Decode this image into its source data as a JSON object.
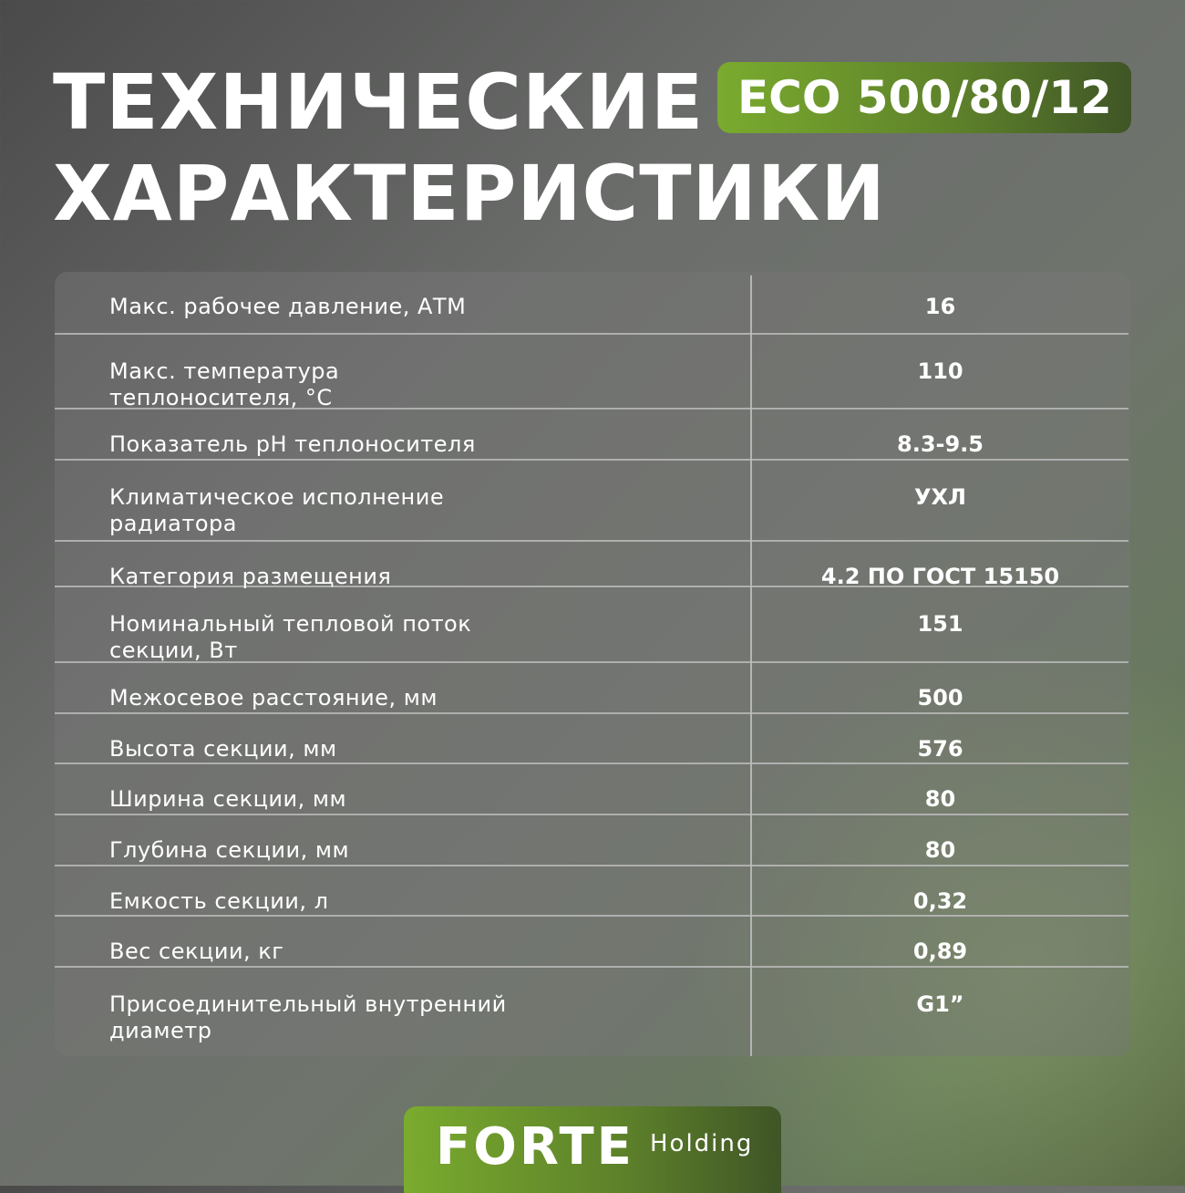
{
  "title": {
    "line1": "ТЕХНИЧЕСКИЕ",
    "line2": "ХАРАКТЕРИСТИКИ"
  },
  "model": "ECO 500/80/12",
  "specs": [
    {
      "label": "Макс. рабочее давление, АТМ",
      "value": "16"
    },
    {
      "label": "Макс. температура теплоносителя, °С",
      "value": "110"
    },
    {
      "label": "Показатель pH теплоносителя",
      "value": "8.3-9.5"
    },
    {
      "label": "Климатическое исполнение радиатора",
      "value": "УХЛ"
    },
    {
      "label": "Категория размещения",
      "value": "4.2 ПО ГОСТ 15150"
    },
    {
      "label": "Номинальный тепловой поток секции, Вт",
      "value": "151"
    },
    {
      "label": "Межосевое расстояние, мм",
      "value": "500"
    },
    {
      "label": "Высота секции, мм",
      "value": "576"
    },
    {
      "label": "Ширина секции, мм",
      "value": "80"
    },
    {
      "label": "Глубина секции, мм",
      "value": "80"
    },
    {
      "label": "Емкость секции, л",
      "value": "0,32"
    },
    {
      "label": "Вес секции, кг",
      "value": "0,89"
    },
    {
      "label": "Присоединительный внутренний диаметр",
      "value": "G1”"
    }
  ],
  "brand": {
    "name": "FORTE",
    "sub": "Holding"
  },
  "colors": {
    "accent": "#7aab2e",
    "accent_dark": "#3f5526"
  }
}
